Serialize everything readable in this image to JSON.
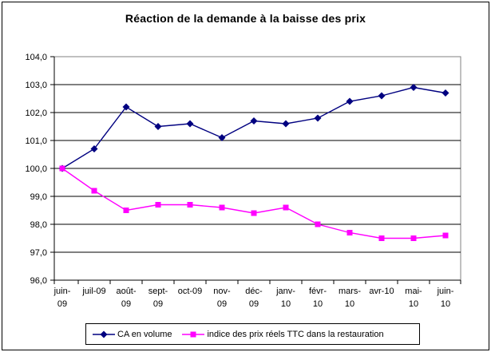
{
  "chart_data": {
    "type": "line",
    "title": "Réaction de la demande à la baisse des prix",
    "categories": [
      "juin-09",
      "juil-09",
      "août-09",
      "sept-09",
      "oct-09",
      "nov-09",
      "déc-09",
      "janv-10",
      "févr-10",
      "mars-10",
      "avr-10",
      "mai-10",
      "juin-10"
    ],
    "category_label_lines": [
      [
        "juin-",
        "09"
      ],
      [
        "juil-09"
      ],
      [
        "août-",
        "09"
      ],
      [
        "sept-",
        "09"
      ],
      [
        "oct-09"
      ],
      [
        "nov-",
        "09"
      ],
      [
        "déc-",
        "09"
      ],
      [
        "janv-",
        "10"
      ],
      [
        "févr-",
        "10"
      ],
      [
        "mars-",
        "10"
      ],
      [
        "avr-10"
      ],
      [
        "mai-",
        "10"
      ],
      [
        "juin-",
        "10"
      ]
    ],
    "series": [
      {
        "name": "CA en volume",
        "color": "#000080",
        "marker": "diamond",
        "values": [
          100.0,
          100.7,
          102.2,
          101.5,
          101.6,
          101.1,
          101.7,
          101.6,
          101.8,
          102.4,
          102.6,
          102.9,
          102.7
        ]
      },
      {
        "name": "indice des prix réels TTC dans la restauration",
        "color": "#FF00FF",
        "marker": "square",
        "values": [
          100.0,
          99.2,
          98.5,
          98.7,
          98.7,
          98.6,
          98.4,
          98.6,
          98.0,
          97.7,
          97.5,
          97.5,
          97.6
        ]
      }
    ],
    "xlabel": "",
    "ylabel": "",
    "ylim": [
      96.0,
      104.0
    ],
    "ytick_step": 1.0,
    "ytick_labels": [
      "96,0",
      "97,0",
      "98,0",
      "99,0",
      "100,0",
      "101,0",
      "102,0",
      "103,0",
      "104,0"
    ],
    "grid": true,
    "legend_position": "bottom"
  },
  "colors": {
    "background": "#FFFFFF",
    "frame_border": "#000000",
    "plot_border": "#808080",
    "gridline": "#000000",
    "axis": "#000000",
    "text": "#000000"
  }
}
